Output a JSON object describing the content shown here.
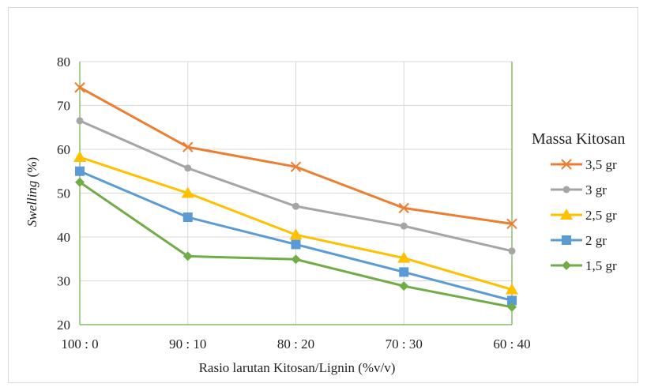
{
  "chart_data": {
    "type": "line",
    "categories": [
      "100 : 0",
      "90 : 10",
      "80 : 20",
      "70 : 30",
      "60 : 40"
    ],
    "xlabel": "Rasio larutan Kitosan/Lignin (%v/v)",
    "ylabel_italic": "Swelling",
    "ylabel_unit": " (%)",
    "ylim": [
      20,
      80
    ],
    "yticks": [
      20,
      30,
      40,
      50,
      60,
      70,
      80
    ],
    "grid": "horizontal",
    "legend_title": "Massa Kitosan",
    "legend_position": "right",
    "series": [
      {
        "name": "3,5 gr",
        "color": "#ED7D31",
        "marker": "x",
        "values": [
          74.1,
          60.5,
          56.0,
          46.6,
          43.0
        ]
      },
      {
        "name": "3 gr",
        "color": "#A5A5A5",
        "marker": "circle",
        "values": [
          66.5,
          55.7,
          47.0,
          42.5,
          36.8
        ]
      },
      {
        "name": "2,5 gr",
        "color": "#FFC000",
        "marker": "triangle",
        "values": [
          58.2,
          50.0,
          40.5,
          35.2,
          28.0
        ]
      },
      {
        "name": "2 gr",
        "color": "#5B9BD5",
        "marker": "square",
        "values": [
          55.0,
          44.5,
          38.3,
          32.0,
          25.5
        ]
      },
      {
        "name": "1,5 gr",
        "color": "#70AD47",
        "marker": "diamond",
        "values": [
          52.5,
          35.6,
          34.9,
          28.8,
          24.0
        ]
      }
    ]
  }
}
